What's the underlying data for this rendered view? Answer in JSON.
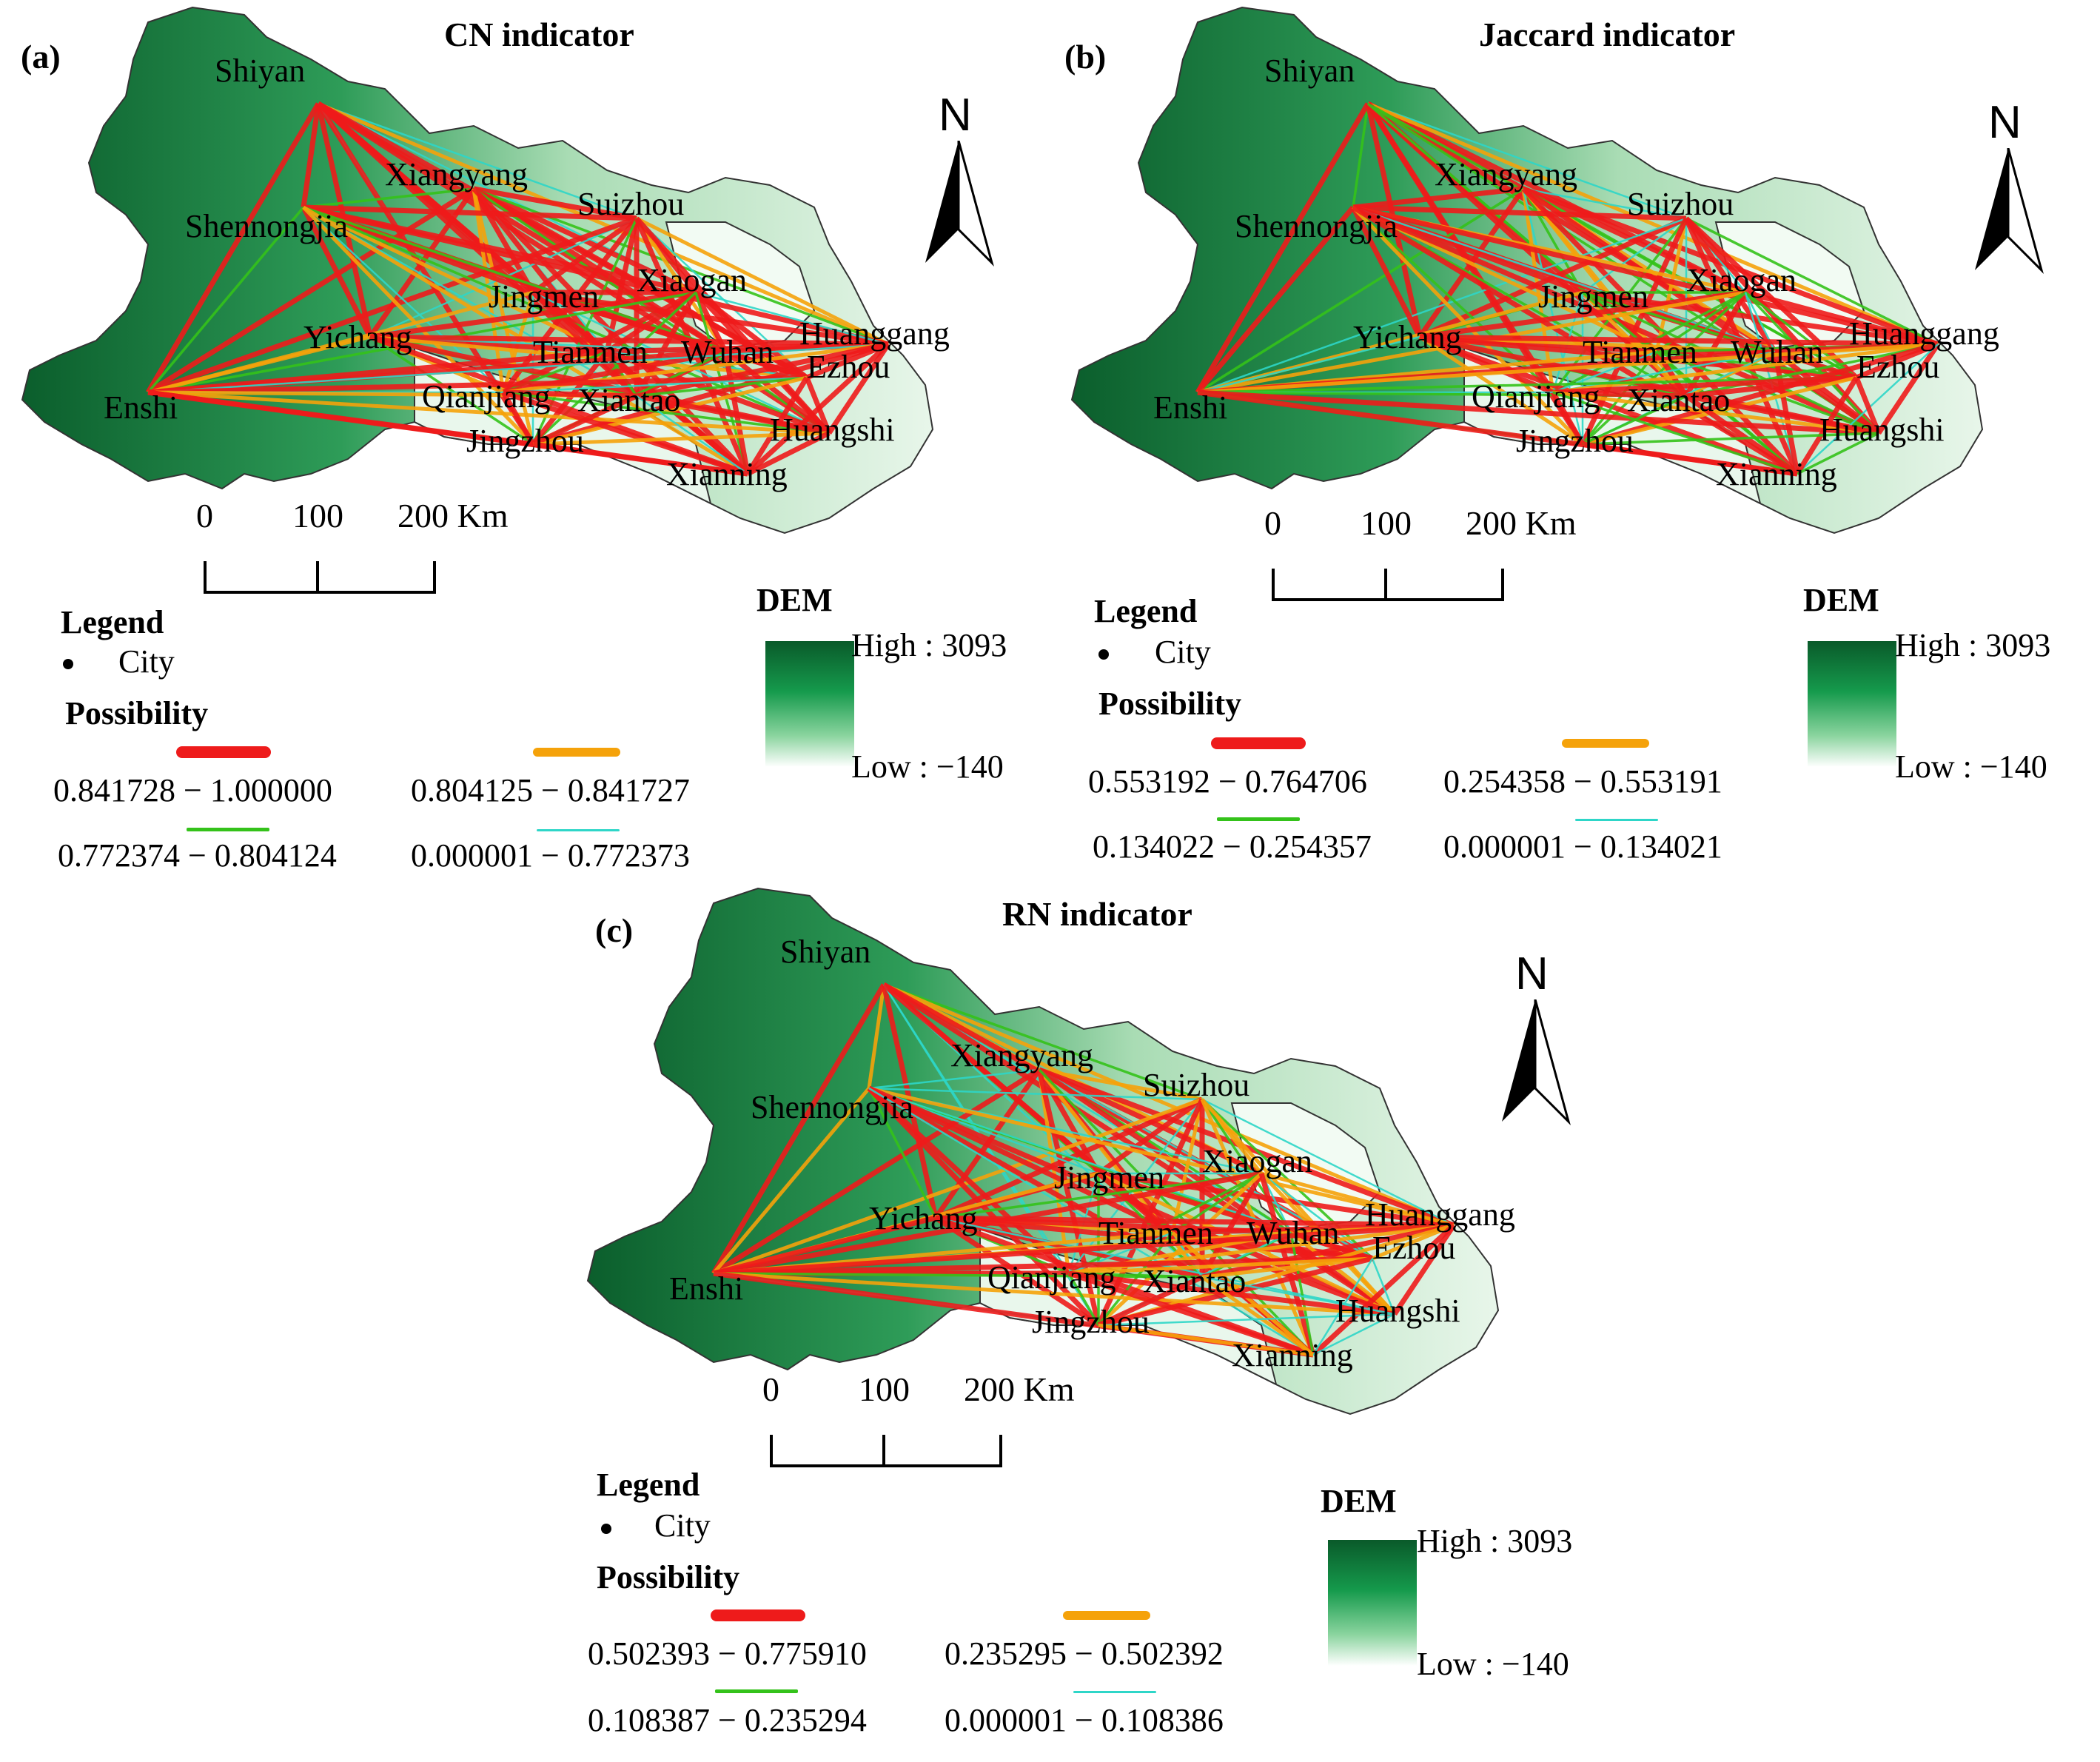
{
  "panels": [
    {
      "label": "(a)",
      "title": "CN indicator",
      "legend": {
        "title": "Legend",
        "city_label": "City",
        "possibility_title": "Possibility",
        "classes": [
          {
            "range": "0.841728 − 1.000000",
            "color": "#ee1b1b"
          },
          {
            "range": "0.804125 − 0.841727",
            "color": "#f5a20a"
          },
          {
            "range": "0.772374 − 0.804124",
            "color": "#34c21a"
          },
          {
            "range": "0.000001 − 0.772373",
            "color": "#2ed6c8"
          }
        ]
      },
      "dem": {
        "title": "DEM",
        "high": "High : 3093",
        "low": "Low : −140"
      },
      "scale": {
        "t0": "0",
        "t1": "100",
        "t2": "200 Km"
      },
      "north": "N"
    },
    {
      "label": "(b)",
      "title": "Jaccard indicator",
      "legend": {
        "title": "Legend",
        "city_label": "City",
        "possibility_title": "Possibility",
        "classes": [
          {
            "range": "0.553192 − 0.764706",
            "color": "#ee1b1b"
          },
          {
            "range": "0.254358 − 0.553191",
            "color": "#f5a20a"
          },
          {
            "range": "0.134022 − 0.254357",
            "color": "#34c21a"
          },
          {
            "range": "0.000001 − 0.134021",
            "color": "#2ed6c8"
          }
        ]
      },
      "dem": {
        "title": "DEM",
        "high": "High : 3093",
        "low": "Low : −140"
      },
      "scale": {
        "t0": "0",
        "t1": "100",
        "t2": "200 Km"
      },
      "north": "N"
    },
    {
      "label": "(c)",
      "title": "RN indicator",
      "legend": {
        "title": "Legend",
        "city_label": "City",
        "possibility_title": "Possibility",
        "classes": [
          {
            "range": "0.502393 − 0.775910",
            "color": "#ee1b1b"
          },
          {
            "range": "0.235295 − 0.502392",
            "color": "#f5a20a"
          },
          {
            "range": "0.108387 − 0.235294",
            "color": "#34c21a"
          },
          {
            "range": "0.000001 − 0.108386",
            "color": "#2ed6c8"
          }
        ]
      },
      "dem": {
        "title": "DEM",
        "high": "High : 3093",
        "low": "Low : −140"
      },
      "scale": {
        "t0": "0",
        "t1": "100",
        "t2": "200 Km"
      },
      "north": "N"
    }
  ],
  "cities": [
    "Shiyan",
    "Xiangyang",
    "Suizhou",
    "Shennongjia",
    "Jingmen",
    "Xiaogan",
    "Yichang",
    "Tianmen",
    "Wuhan",
    "Huanggang",
    "Ezhou",
    "Enshi",
    "Qianjiang",
    "Xiantao",
    "Huangshi",
    "Jingzhou",
    "Xianning"
  ],
  "colors": {
    "dem_dark": "#0a5a2a",
    "dem_mid": "#3fae68",
    "dem_light": "#d8f0dc"
  }
}
